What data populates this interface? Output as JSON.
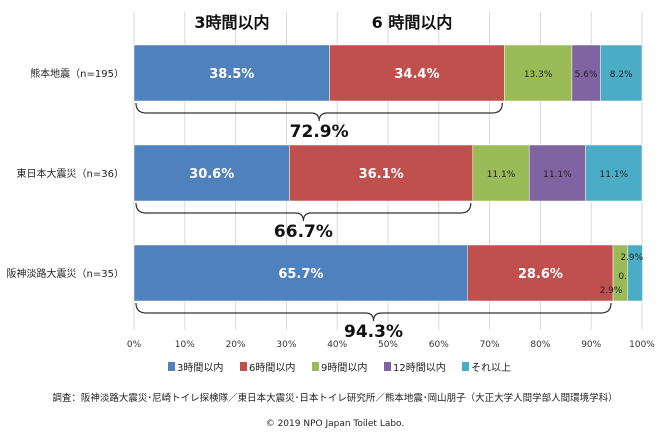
{
  "chart_data": {
    "type": "bar",
    "orientation": "horizontal",
    "stacked": true,
    "categories": [
      "熊本地震（n=195）",
      "東日本大震災（n=36）",
      "阪神淡路大震災（n=35）"
    ],
    "series": [
      {
        "name": "3時間以内",
        "color": "#4f81bd",
        "values": [
          38.5,
          30.6,
          65.7
        ],
        "labels": [
          "38.5%",
          "30.6%",
          "65.7%"
        ]
      },
      {
        "name": "6時間以内",
        "color": "#c0504d",
        "values": [
          34.4,
          36.1,
          28.6
        ],
        "labels": [
          "34.4%",
          "36.1%",
          "28.6%"
        ]
      },
      {
        "name": "9時間以内",
        "color": "#9bbb59",
        "values": [
          13.3,
          11.1,
          2.9
        ],
        "labels": [
          "13.3%",
          "11.1%",
          "2.9%"
        ]
      },
      {
        "name": "12時間以内",
        "color": "#8064a2",
        "values": [
          5.6,
          11.1,
          0.0
        ],
        "labels": [
          "5.6%",
          "11.1%",
          "0.0%"
        ]
      },
      {
        "name": "それ以上",
        "color": "#4bacc6",
        "values": [
          8.2,
          11.1,
          2.9
        ],
        "labels": [
          "8.2%",
          "11.1%",
          "2.9%"
        ]
      }
    ],
    "xlim": [
      0,
      100
    ],
    "x_ticks": [
      "0%",
      "10%",
      "20%",
      "30%",
      "40%",
      "50%",
      "60%",
      "70%",
      "80%",
      "90%",
      "100%"
    ],
    "grid": true,
    "legend": "bottom",
    "annotations": {
      "headers": [
        "3時間以内",
        "6 時間以内"
      ],
      "cumulative": [
        {
          "value": 72.9,
          "label": "72.9%"
        },
        {
          "value": 66.7,
          "label": "66.7%"
        },
        {
          "value": 94.3,
          "label": "94.3%"
        }
      ]
    },
    "source": "調査：阪神淡路大震災･尼崎トイレ探検隊／東日本大震災･日本トイレ研究所／熊本地震･岡山朋子（大正大学人間学部人間環境学科）",
    "copyright": "© 2019 NPO Japan Toilet Labo."
  }
}
